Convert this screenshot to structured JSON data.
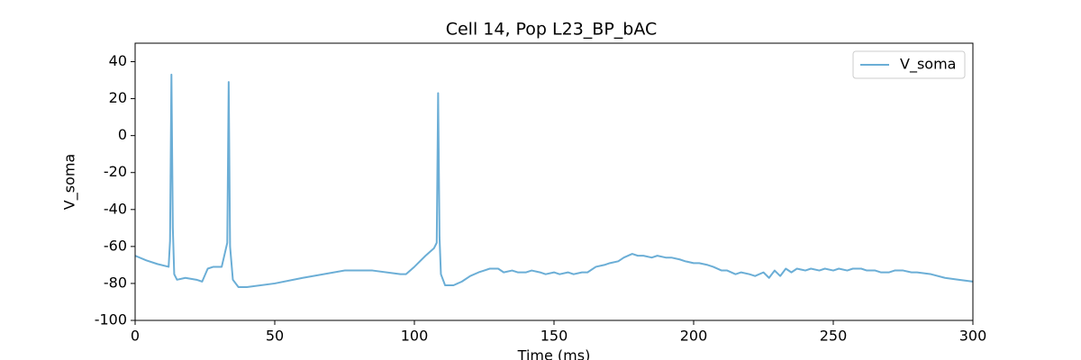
{
  "chart_data": {
    "type": "line",
    "title": "Cell 14, Pop L23_BP_bAC",
    "x_label": "Time (ms)",
    "y_label": "V_soma",
    "x": [
      0,
      4,
      8,
      12,
      12.5,
      13,
      13.5,
      14,
      15,
      18,
      22,
      24,
      26,
      28,
      31,
      33,
      33.5,
      34,
      35,
      37,
      40,
      50,
      60,
      75,
      85,
      95,
      97,
      100,
      104,
      107,
      108,
      108.5,
      109,
      109.5,
      111,
      114,
      117,
      120,
      123,
      125,
      127,
      130,
      132,
      135,
      137,
      140,
      142,
      145,
      147,
      150,
      152,
      155,
      157,
      160,
      162,
      165,
      168,
      170,
      173,
      175,
      178,
      180,
      182,
      185,
      187,
      190,
      192,
      195,
      197,
      200,
      202,
      205,
      207,
      210,
      212,
      215,
      217,
      220,
      222,
      225,
      227,
      229,
      231,
      233,
      235,
      237,
      240,
      242,
      245,
      247,
      250,
      252,
      255,
      257,
      260,
      262,
      265,
      267,
      270,
      272,
      275,
      278,
      280,
      285,
      290,
      295,
      300
    ],
    "series": [
      {
        "name": "V_soma",
        "color": "#6baed6",
        "values": [
          -65,
          -67.5,
          -69.5,
          -71,
          -57,
          33,
          -50,
          -75,
          -78,
          -77,
          -78,
          -79,
          -72,
          -71,
          -71,
          -58,
          29,
          -60,
          -78,
          -82,
          -82,
          -80,
          -77,
          -73,
          -73,
          -75,
          -75,
          -71,
          -65,
          -61,
          -58,
          23,
          -55,
          -75,
          -81,
          -81,
          -79,
          -76,
          -74,
          -73,
          -72,
          -72,
          -74,
          -73,
          -74,
          -74,
          -73,
          -74,
          -75,
          -74,
          -75,
          -74,
          -75,
          -74,
          -74,
          -71,
          -70,
          -69,
          -68,
          -66,
          -64,
          -65,
          -65,
          -66,
          -65,
          -66,
          -66,
          -67,
          -68,
          -69,
          -69,
          -70,
          -71,
          -73,
          -73,
          -75,
          -74,
          -75,
          -76,
          -74,
          -77,
          -73,
          -76,
          -72,
          -74,
          -72,
          -73,
          -72,
          -73,
          -72,
          -73,
          -72,
          -73,
          -72,
          -72,
          -73,
          -73,
          -74,
          -74,
          -73,
          -73,
          -74,
          -74,
          -75,
          -77,
          -78,
          -79
        ]
      }
    ],
    "xlim": [
      0,
      300
    ],
    "ylim": [
      -100,
      50
    ],
    "xticks": [
      0,
      50,
      100,
      150,
      200,
      250,
      300
    ],
    "yticks": [
      -100,
      -80,
      -60,
      -40,
      -20,
      0,
      20,
      40
    ],
    "legend": "upper right"
  }
}
